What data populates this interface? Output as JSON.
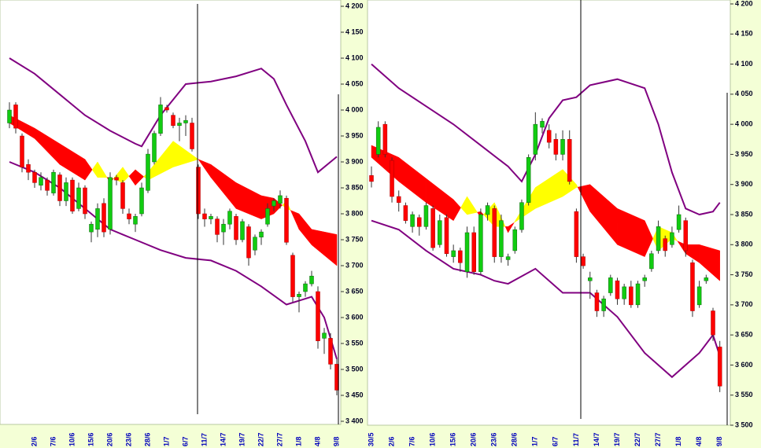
{
  "chart_data": [
    {
      "type": "candlestick",
      "categories": [
        null,
        null,
        null,
        null,
        "2/6",
        null,
        null,
        "7/6",
        null,
        null,
        "10/6",
        null,
        null,
        "15/6",
        null,
        null,
        "20/6",
        null,
        null,
        "23/6",
        null,
        null,
        "28/6",
        null,
        null,
        "1/7",
        null,
        null,
        "6/7",
        null,
        null,
        "11/7",
        null,
        null,
        "14/7",
        null,
        null,
        "19/7",
        null,
        null,
        "22/7",
        null,
        null,
        "27/7",
        null,
        null,
        "1/8",
        null,
        null,
        "4/8",
        null,
        null,
        "9/8"
      ],
      "open": [
        3975,
        4010,
        3950,
        3895,
        3880,
        3855,
        3865,
        3840,
        3875,
        3825,
        3865,
        3810,
        3850,
        3765,
        3770,
        3820,
        3770,
        3870,
        3860,
        3800,
        3780,
        3800,
        3845,
        3900,
        3955,
        4005,
        3990,
        3970,
        3975,
        3975,
        3890,
        3800,
        3790,
        3790,
        3765,
        3780,
        3795,
        3750,
        3775,
        3730,
        3755,
        3780,
        3815,
        3820,
        3830,
        3720,
        3640,
        3650,
        3665,
        3650,
        3560,
        3560,
        3510
      ],
      "high": [
        4015,
        4015,
        3955,
        3905,
        3885,
        3880,
        3870,
        3885,
        3880,
        3870,
        3870,
        3860,
        3855,
        3785,
        3820,
        3830,
        3880,
        3875,
        3865,
        3810,
        3800,
        3860,
        3925,
        3960,
        4025,
        4010,
        3995,
        3985,
        3990,
        3985,
        3895,
        3810,
        3800,
        3795,
        3790,
        3810,
        3800,
        3790,
        3780,
        3760,
        3770,
        3820,
        3830,
        3845,
        3835,
        3725,
        3650,
        3670,
        3690,
        3660,
        3580,
        3570,
        3520
      ],
      "low": [
        3965,
        3955,
        3880,
        3865,
        3850,
        3845,
        3835,
        3835,
        3815,
        3815,
        3800,
        3805,
        3790,
        3745,
        3755,
        3755,
        3760,
        3855,
        3800,
        3780,
        3765,
        3795,
        3840,
        3895,
        3950,
        3995,
        3965,
        3940,
        3950,
        3920,
        3790,
        3775,
        3780,
        3745,
        3740,
        3770,
        3740,
        3745,
        3700,
        3720,
        3740,
        3775,
        3805,
        3810,
        3740,
        3630,
        3610,
        3640,
        3660,
        3540,
        3530,
        3500,
        3450
      ],
      "close": [
        4000,
        3965,
        3890,
        3880,
        3860,
        3870,
        3845,
        3880,
        3825,
        3860,
        3805,
        3850,
        3800,
        3780,
        3810,
        3765,
        3870,
        3865,
        3810,
        3790,
        3795,
        3850,
        3915,
        3955,
        4010,
        4000,
        3970,
        3975,
        3980,
        3925,
        3800,
        3790,
        3795,
        3760,
        3780,
        3805,
        3750,
        3785,
        3715,
        3755,
        3765,
        3810,
        3825,
        3835,
        3745,
        3640,
        3645,
        3665,
        3680,
        3555,
        3570,
        3510,
        3460
      ],
      "up_color": "#11cc11",
      "down_color": "#ff0000",
      "upper_band": {
        "x": [
          0,
          4,
          8,
          12,
          16,
          20,
          21,
          24,
          28,
          32,
          36,
          40,
          42,
          44,
          47,
          49,
          52
        ],
        "values": [
          4100,
          4070,
          4030,
          3990,
          3960,
          3935,
          3930,
          3990,
          4050,
          4055,
          4065,
          4080,
          4060,
          4010,
          3940,
          3880,
          3910
        ],
        "color": "#800080"
      },
      "lower_band": {
        "x": [
          0,
          4,
          8,
          12,
          16,
          18,
          20,
          24,
          28,
          32,
          36,
          40,
          44,
          48,
          50,
          52
        ],
        "values": [
          3900,
          3880,
          3850,
          3810,
          3770,
          3760,
          3750,
          3730,
          3715,
          3710,
          3690,
          3660,
          3625,
          3640,
          3600,
          3520
        ],
        "color": "#800080"
      },
      "cloud": {
        "x": [
          0,
          4,
          8,
          12,
          14,
          16,
          18,
          20,
          22,
          26,
          30,
          32,
          36,
          40,
          42,
          44,
          46,
          48,
          52
        ],
        "span_a": [
          3990,
          3965,
          3935,
          3905,
          3870,
          3870,
          3860,
          3885,
          3865,
          3890,
          3905,
          3895,
          3860,
          3835,
          3830,
          3810,
          3800,
          3770,
          3760
        ],
        "span_b": [
          3975,
          3945,
          3895,
          3865,
          3900,
          3860,
          3890,
          3855,
          3880,
          3940,
          3905,
          3870,
          3810,
          3790,
          3800,
          3825,
          3770,
          3740,
          3700
        ],
        "colors": [
          "#ff0000",
          "#ffff00"
        ]
      },
      "ylim": [
        3400,
        4200
      ],
      "yticks": [
        {
          "value": 3400,
          "label": "3 400"
        },
        {
          "value": 3450,
          "label": "3 450"
        },
        {
          "value": 3500,
          "label": "3 500"
        },
        {
          "value": 3550,
          "label": "3 550"
        },
        {
          "value": 3600,
          "label": "3 600"
        },
        {
          "value": 3650,
          "label": "3 650"
        },
        {
          "value": 3700,
          "label": "3 700"
        },
        {
          "value": 3750,
          "label": "3 750"
        },
        {
          "value": 3800,
          "label": "3 800"
        },
        {
          "value": 3850,
          "label": "3 850"
        },
        {
          "value": 3900,
          "label": "3 900"
        },
        {
          "value": 3950,
          "label": "3 950"
        },
        {
          "value": 4000,
          "label": "4 000"
        },
        {
          "value": 4050,
          "label": "4 050"
        },
        {
          "value": 4100,
          "label": "4 100"
        },
        {
          "value": 4150,
          "label": "4 150"
        },
        {
          "value": 4200,
          "label": "4 200"
        }
      ]
    },
    {
      "type": "candlestick",
      "categories": [
        "30/5",
        null,
        null,
        "2/6",
        null,
        null,
        "7/6",
        null,
        null,
        "10/6",
        null,
        null,
        "15/6",
        null,
        null,
        "20/6",
        null,
        null,
        "23/6",
        null,
        null,
        "28/6",
        null,
        null,
        "1/7",
        null,
        null,
        "6/7",
        null,
        null,
        "11/7",
        null,
        null,
        "14/7",
        null,
        null,
        "19/7",
        null,
        null,
        "22/7",
        null,
        null,
        "27/7",
        null,
        null,
        "1/8",
        null,
        null,
        "4/8",
        null,
        null,
        "9/8"
      ],
      "open": [
        3915,
        3950,
        4000,
        3940,
        3880,
        3865,
        3830,
        3845,
        3830,
        3860,
        3800,
        3845,
        3780,
        3790,
        3755,
        3820,
        3755,
        3850,
        3860,
        3780,
        3775,
        3790,
        3825,
        3870,
        3950,
        3995,
        3990,
        3975,
        3950,
        3975,
        3855,
        3780,
        3740,
        3720,
        3690,
        3720,
        3740,
        3710,
        3730,
        3700,
        3740,
        3760,
        3790,
        3810,
        3800,
        3825,
        3840,
        3770,
        3700,
        3740,
        3690,
        3630
      ],
      "high": [
        3930,
        4005,
        4005,
        3945,
        3890,
        3870,
        3855,
        3850,
        3870,
        3865,
        3850,
        3850,
        3800,
        3795,
        3830,
        3830,
        3860,
        3870,
        3865,
        3850,
        3785,
        3830,
        3875,
        3950,
        4020,
        4010,
        4000,
        3985,
        3990,
        3990,
        3860,
        3785,
        3755,
        3725,
        3715,
        3750,
        3745,
        3735,
        3740,
        3740,
        3750,
        3790,
        3840,
        3815,
        3830,
        3865,
        3845,
        3775,
        3740,
        3750,
        3695,
        3640
      ],
      "low": [
        3895,
        3945,
        3945,
        3870,
        3855,
        3835,
        3820,
        3815,
        3825,
        3790,
        3795,
        3780,
        3770,
        3755,
        3745,
        3750,
        3750,
        3840,
        3770,
        3770,
        3765,
        3785,
        3820,
        3865,
        3940,
        3985,
        3960,
        3940,
        3940,
        3900,
        3770,
        3760,
        3710,
        3680,
        3680,
        3715,
        3700,
        3700,
        3695,
        3695,
        3730,
        3755,
        3785,
        3780,
        3795,
        3820,
        3780,
        3680,
        3695,
        3735,
        3640,
        3555
      ],
      "close": [
        3905,
        3995,
        3950,
        3880,
        3870,
        3840,
        3850,
        3830,
        3865,
        3795,
        3840,
        3785,
        3790,
        3770,
        3820,
        3755,
        3850,
        3865,
        3780,
        3840,
        3780,
        3825,
        3870,
        3945,
        4000,
        4005,
        3970,
        3950,
        3975,
        3905,
        3780,
        3765,
        3745,
        3690,
        3710,
        3745,
        3710,
        3730,
        3700,
        3735,
        3745,
        3785,
        3830,
        3790,
        3820,
        3850,
        3790,
        3690,
        3730,
        3745,
        3650,
        3565
      ],
      "up_color": "#11cc11",
      "down_color": "#ff0000",
      "upper_band": {
        "x": [
          0,
          4,
          8,
          12,
          16,
          20,
          22,
          24,
          26,
          28,
          30,
          32,
          36,
          40,
          42,
          44,
          46,
          48,
          50,
          51
        ],
        "values": [
          4100,
          4060,
          4030,
          4000,
          3965,
          3930,
          3905,
          3950,
          4010,
          4040,
          4045,
          4065,
          4075,
          4060,
          4000,
          3920,
          3860,
          3850,
          3855,
          3870
        ],
        "color": "#800080"
      },
      "lower_band": {
        "x": [
          0,
          4,
          8,
          12,
          16,
          18,
          20,
          24,
          28,
          32,
          36,
          40,
          44,
          46,
          48,
          50,
          51
        ],
        "values": [
          3840,
          3825,
          3790,
          3760,
          3750,
          3740,
          3735,
          3760,
          3720,
          3720,
          3680,
          3620,
          3580,
          3600,
          3620,
          3650,
          3615
        ],
        "color": "#800080"
      },
      "cloud": {
        "x": [
          0,
          4,
          8,
          12,
          14,
          16,
          18,
          20,
          24,
          28,
          30,
          32,
          36,
          40,
          42,
          44,
          46,
          48,
          51
        ],
        "span_a": [
          3965,
          3945,
          3910,
          3875,
          3850,
          3855,
          3830,
          3830,
          3860,
          3880,
          3895,
          3900,
          3860,
          3840,
          3790,
          3810,
          3800,
          3800,
          3790
        ],
        "span_b": [
          3945,
          3905,
          3870,
          3840,
          3880,
          3845,
          3870,
          3820,
          3895,
          3925,
          3900,
          3855,
          3800,
          3780,
          3830,
          3820,
          3785,
          3770,
          3740
        ],
        "colors": [
          "#ff0000",
          "#ffff00"
        ]
      },
      "ylim": [
        3500,
        4200
      ],
      "yticks": [
        {
          "value": 3500,
          "label": "3 500"
        },
        {
          "value": 3550,
          "label": "3 550"
        },
        {
          "value": 3600,
          "label": "3 600"
        },
        {
          "value": 3650,
          "label": "3 650"
        },
        {
          "value": 3700,
          "label": "3 700"
        },
        {
          "value": 3750,
          "label": "3 750"
        },
        {
          "value": 3800,
          "label": "3 800"
        },
        {
          "value": 3850,
          "label": "3 850"
        },
        {
          "value": 3900,
          "label": "3 900"
        },
        {
          "value": 3950,
          "label": "3 950"
        },
        {
          "value": 4000,
          "label": "4 000"
        },
        {
          "value": 4050,
          "label": "4 050"
        },
        {
          "value": 4100,
          "label": "4 100"
        },
        {
          "value": 4150,
          "label": "4 150"
        },
        {
          "value": 4200,
          "label": "4 200"
        }
      ]
    }
  ]
}
